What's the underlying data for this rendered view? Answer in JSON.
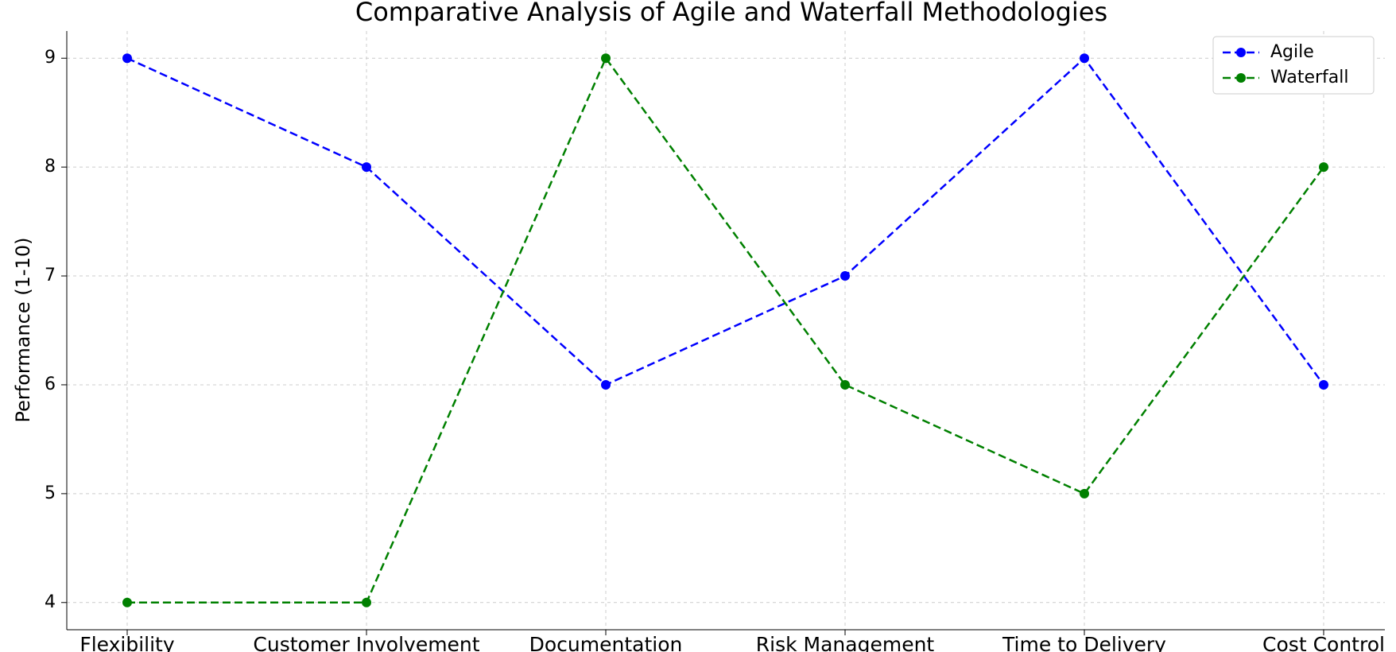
{
  "chart_data": {
    "type": "line",
    "title": "Comparative Analysis of Agile and Waterfall Methodologies",
    "y_label": "Performance (1-10)",
    "categories": [
      "Flexibility",
      "Customer Involvement",
      "Documentation",
      "Risk Management",
      "Time to Delivery",
      "Cost Control"
    ],
    "series": [
      {
        "name": "Agile",
        "color": "#0000ff",
        "values": [
          9,
          8,
          6,
          7,
          9,
          6
        ]
      },
      {
        "name": "Waterfall",
        "color": "#008000",
        "values": [
          4,
          4,
          9,
          6,
          5,
          8
        ]
      }
    ],
    "ylim": [
      3.75,
      9.25
    ],
    "yticks": [
      4,
      5,
      6,
      7,
      8,
      9
    ],
    "grid": true,
    "legend": "upper right"
  }
}
